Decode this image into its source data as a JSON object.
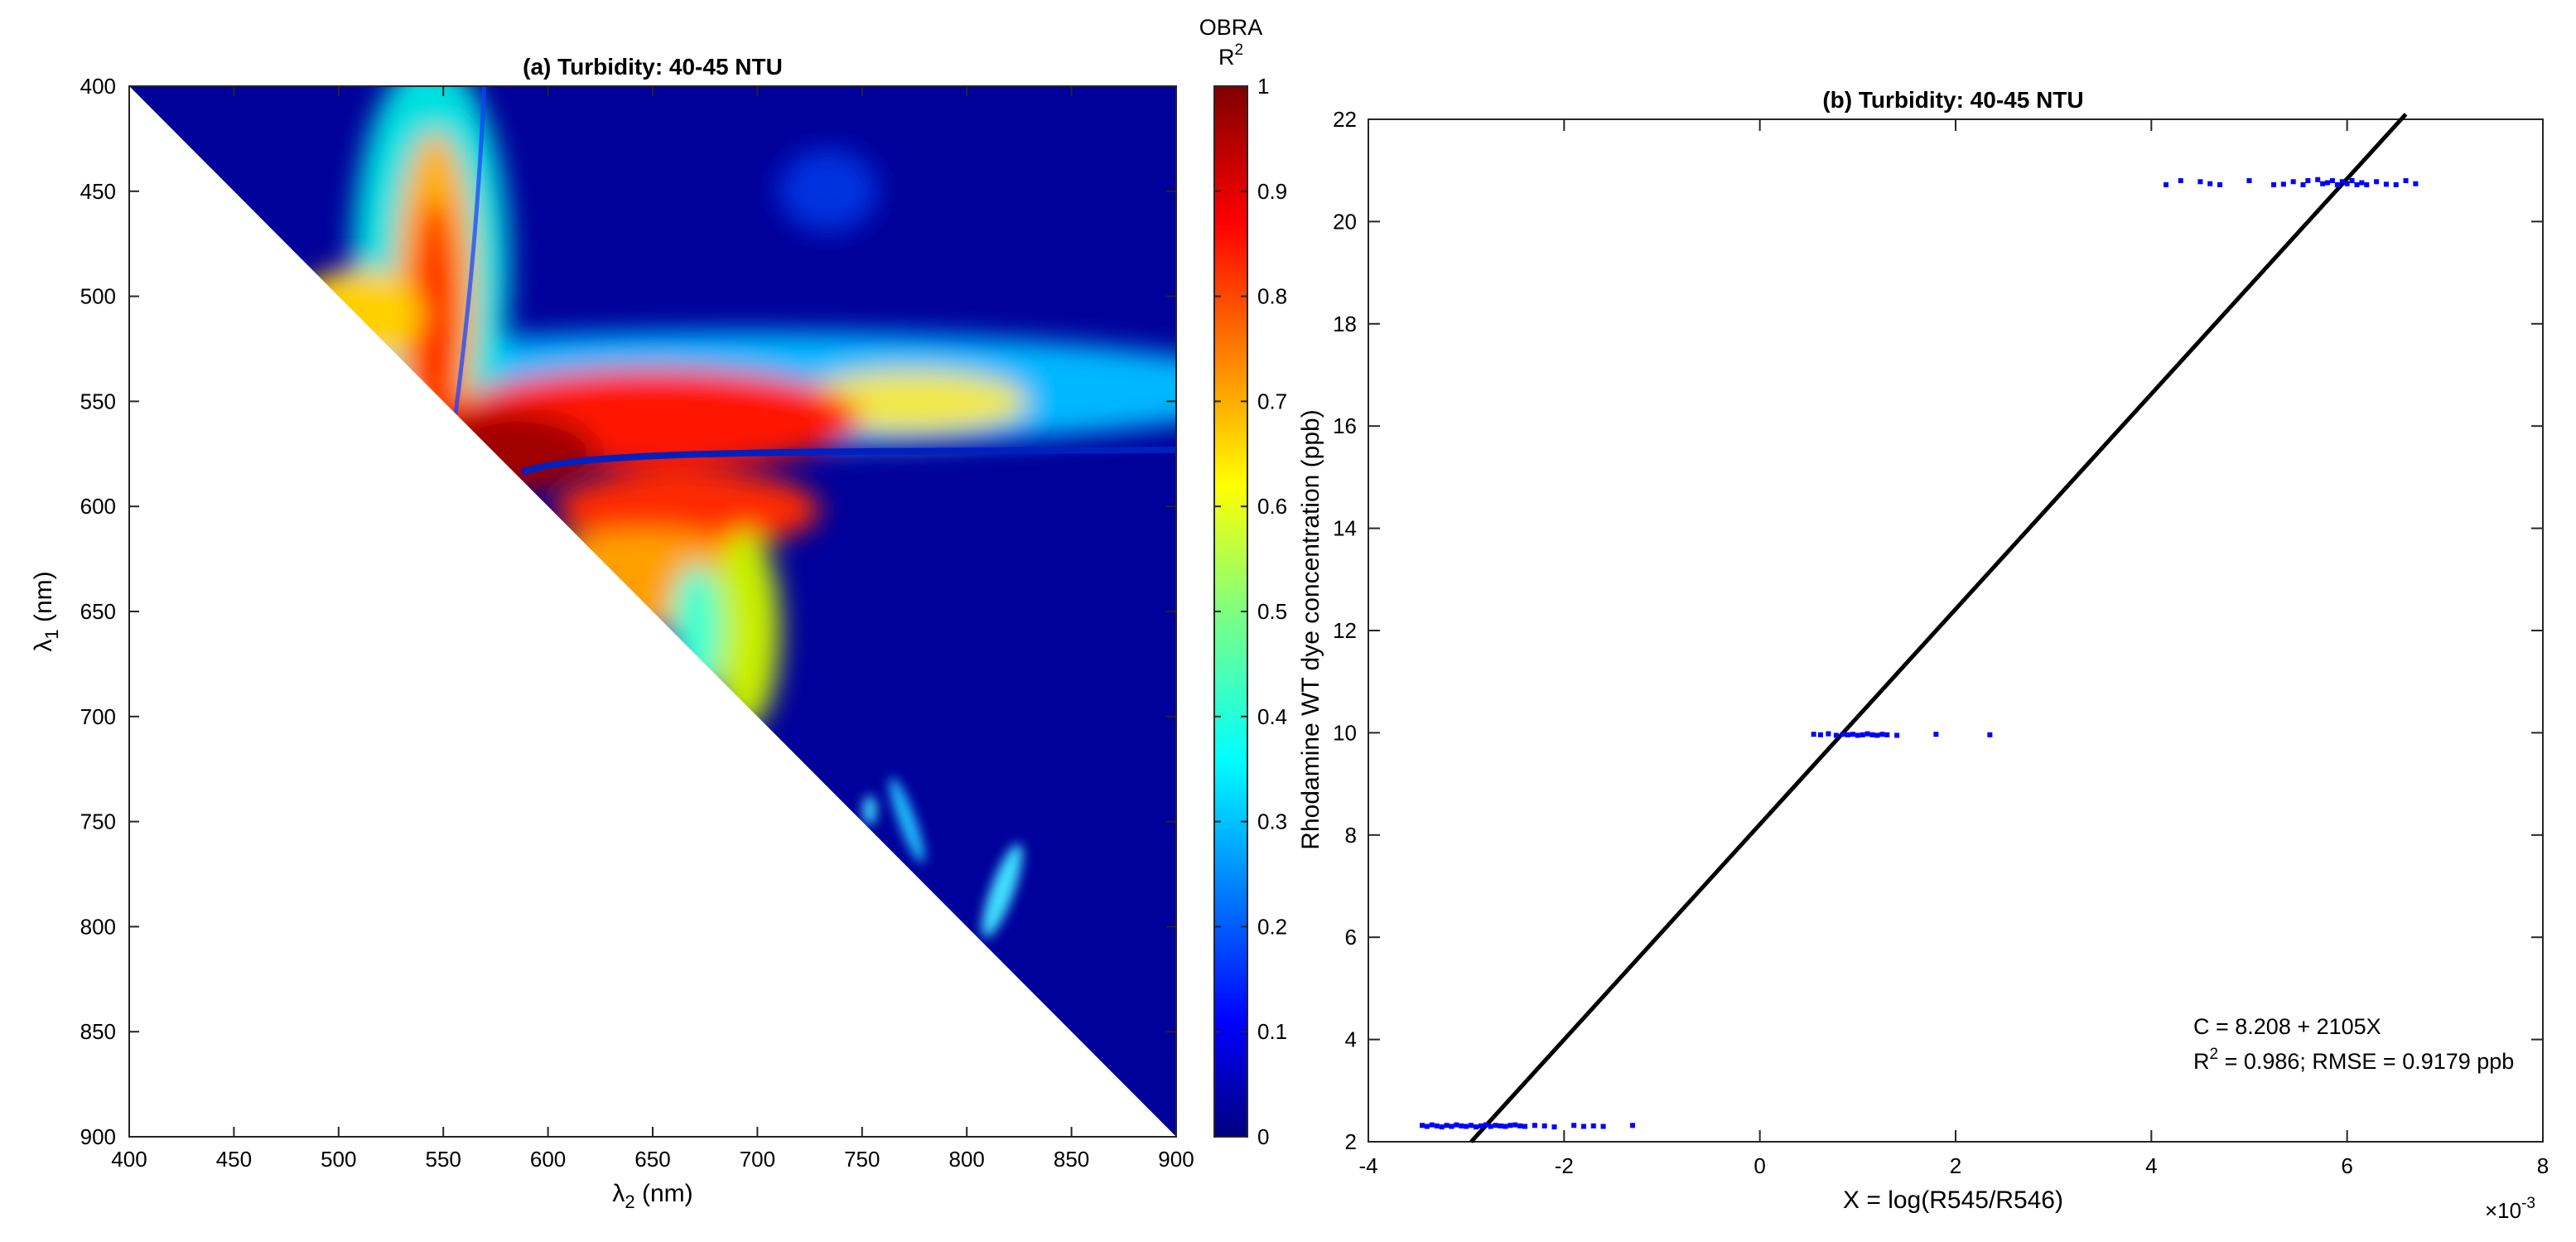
{
  "panels": [
    {
      "title": "(a) Turbidity: 40-45 NTU",
      "xlabel_symbol": "λ",
      "xlabel_sub": "2",
      "xlabel_unit": " (nm)",
      "ylabel_symbol": "λ",
      "ylabel_sub": "1",
      "ylabel_unit": " (nm)",
      "xticks": [
        "400",
        "450",
        "500",
        "550",
        "600",
        "650",
        "700",
        "750",
        "800",
        "850",
        "900"
      ],
      "yticks": [
        "400",
        "450",
        "500",
        "550",
        "600",
        "650",
        "700",
        "750",
        "800",
        "850",
        "900"
      ],
      "colorbar": {
        "title_line1": "OBRA",
        "title_line2": "R",
        "title_sup": "2",
        "ticks": [
          "0",
          "0.1",
          "0.2",
          "0.3",
          "0.4",
          "0.5",
          "0.6",
          "0.7",
          "0.8",
          "0.9",
          "1"
        ]
      }
    },
    {
      "title": "(b) Turbidity: 40-45 NTU",
      "xlabel": "X = log(R545/R546)",
      "ylabel": "Rhodamine WT dye concentration (ppb)",
      "xticks": [
        "-4",
        "-2",
        "0",
        "2",
        "4",
        "6",
        "8"
      ],
      "yticks": [
        "2",
        "4",
        "6",
        "8",
        "10",
        "12",
        "14",
        "16",
        "18",
        "20",
        "22"
      ],
      "x_exponent_base": "×10",
      "x_exponent": "-3",
      "equation": "C = 8.208 + 2105X",
      "stats_prefix": "R",
      "stats_sup": "2",
      "stats_rest": " = 0.986; RMSE = 0.9179 ppb"
    }
  ],
  "chart_data": [
    {
      "type": "heatmap",
      "title": "(a) Turbidity: 40-45 NTU",
      "x_axis": "λ2 (nm)",
      "y_axis": "λ1 (nm)",
      "xlim": [
        400,
        900
      ],
      "ylim": [
        400,
        900
      ],
      "y_reversed": true,
      "value_range": [
        0,
        1
      ],
      "colormap": "jet",
      "colorbar_label": "OBRA R2",
      "defined_region": "λ2 > λ1 (upper-right triangle)",
      "hotspots": [
        {
          "lambda2": 550,
          "lambda1": 480,
          "value": 0.9
        },
        {
          "lambda2": 610,
          "lambda1": 560,
          "value": 0.97
        },
        {
          "lambda2": 690,
          "lambda1": 550,
          "value": 0.85
        },
        {
          "lambda2": 600,
          "lambda1": 590,
          "value": 0.9
        },
        {
          "lambda2": 650,
          "lambda1": 600,
          "value": 0.8
        },
        {
          "lambda2": 800,
          "lambda1": 555,
          "value": 0.6
        },
        {
          "lambda2": 520,
          "lambda1": 505,
          "value": 0.75
        }
      ]
    },
    {
      "type": "scatter",
      "title": "(b) Turbidity: 40-45 NTU",
      "xlabel": "X = log(R545/R546)",
      "ylabel": "Rhodamine WT dye concentration (ppb)",
      "x_scale_factor": 0.001,
      "xlim": [
        -4,
        8
      ],
      "ylim": [
        2,
        22
      ],
      "series": [
        {
          "x": [
            -3.45,
            -3.4,
            -3.35,
            -3.3,
            -3.25,
            -3.2,
            -3.15,
            -3.1,
            -3.05,
            -3.0,
            -2.95,
            -2.9,
            -2.85,
            -2.8,
            -2.75,
            -2.7,
            -2.65,
            -2.6,
            -2.55,
            -2.5,
            -2.45,
            -2.4,
            -2.3,
            -2.2,
            -2.1,
            -1.9,
            -1.8,
            -1.7,
            -1.6,
            -1.3
          ],
          "y": [
            2.32,
            2.3,
            2.33,
            2.31,
            2.29,
            2.32,
            2.3,
            2.33,
            2.31,
            2.3,
            2.32,
            2.29,
            2.31,
            2.33,
            2.3,
            2.32,
            2.31,
            2.3,
            2.32,
            2.33,
            2.31,
            2.3,
            2.32,
            2.31,
            2.29,
            2.32,
            2.3,
            2.31,
            2.3,
            2.32
          ]
        },
        {
          "x": [
            0.55,
            0.62,
            0.7,
            0.78,
            0.85,
            0.9,
            0.95,
            1.0,
            1.05,
            1.1,
            1.15,
            1.2,
            1.25,
            1.3,
            1.4,
            1.8,
            2.35
          ],
          "y": [
            9.97,
            9.96,
            9.98,
            9.95,
            9.97,
            9.96,
            9.97,
            9.95,
            9.96,
            9.98,
            9.96,
            9.95,
            9.97,
            9.96,
            9.95,
            9.97,
            9.96
          ],
          "line_fit": false
        },
        {
          "x": [
            4.15,
            4.3,
            4.5,
            4.6,
            4.7,
            5.0,
            5.25,
            5.35,
            5.45,
            5.55,
            5.6,
            5.7,
            5.75,
            5.8,
            5.85,
            5.9,
            5.95,
            6.0,
            6.05,
            6.1,
            6.15,
            6.2,
            6.3,
            6.4,
            6.5,
            6.6,
            6.7
          ],
          "y": [
            20.72,
            20.8,
            20.78,
            20.74,
            20.72,
            20.8,
            20.72,
            20.73,
            20.78,
            20.72,
            20.8,
            20.82,
            20.74,
            20.76,
            20.8,
            20.72,
            20.78,
            20.74,
            20.8,
            20.72,
            20.76,
            20.72,
            20.78,
            20.73,
            20.72,
            20.8,
            20.74
          ]
        }
      ],
      "fit": {
        "intercept": 8.208,
        "slope": 2105,
        "x_range_scaled": [
          -2.95,
          6.6
        ]
      }
    }
  ]
}
